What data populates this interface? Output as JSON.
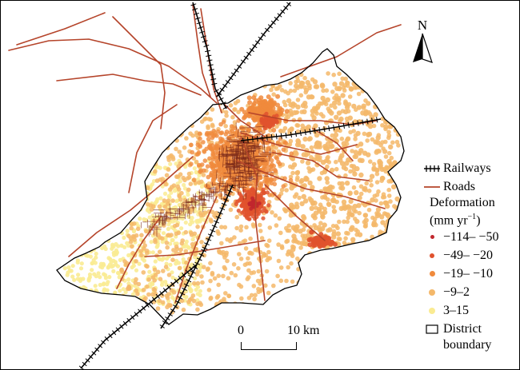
{
  "north": {
    "letter": "N"
  },
  "scale": {
    "start": "0",
    "end": "10 km"
  },
  "legend": {
    "railways": "Railways",
    "roads": "Roads",
    "deformation_title": "Deformation",
    "deformation_unit": "(mm yr",
    "deformation_unit_exp": "−1",
    "deformation_unit_close": ")",
    "classes": [
      {
        "label": "−114– −50",
        "color": "#c1272d"
      },
      {
        "label": "−49– −20",
        "color": "#e0522e"
      },
      {
        "label": "−19– −10",
        "color": "#f08a3c"
      },
      {
        "label": "−9–2",
        "color": "#f4b86a"
      },
      {
        "label": "3–15",
        "color": "#faeb92"
      }
    ],
    "district_line1": "District",
    "district_line2": "boundary"
  },
  "colors": {
    "road": "#b5442a",
    "railway": "#000000",
    "boundary": "#000000",
    "background": "#ffffff"
  }
}
